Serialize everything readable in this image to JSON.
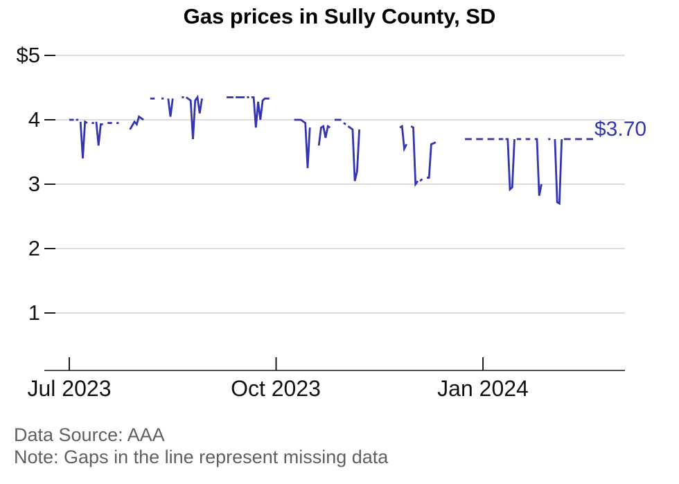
{
  "title": "Gas prices in Sully County, SD",
  "end_label": "$3.70",
  "footer": {
    "source": "Data Source: AAA",
    "note": "Note: Gaps in the line represent missing data"
  },
  "chart_data": {
    "type": "line",
    "title": "Gas prices in Sully County, SD",
    "x_axis": "date",
    "x_tick_labels": [
      "Jul 2023",
      "Oct 2023",
      "Jan 2024"
    ],
    "x_tick_days": [
      0,
      92,
      184
    ],
    "y_tick_labels": [
      "$5",
      "4",
      "3",
      "2",
      "1"
    ],
    "y_tick_values": [
      5,
      4,
      3,
      2,
      1
    ],
    "ylim": [
      0.1,
      5.35
    ],
    "xlim_days": [
      -11,
      247
    ],
    "grid": true,
    "line_color": "#3434ae",
    "annotation": {
      "text": "$3.70",
      "value": 3.7
    },
    "note": "Gaps in the line represent missing data",
    "segments": [
      [
        [
          0,
          4.0
        ],
        [
          2,
          4.0
        ]
      ],
      [
        [
          3,
          4.0
        ],
        [
          4,
          4.0
        ]
      ],
      [
        [
          5,
          3.97
        ],
        [
          6,
          3.4
        ],
        [
          7,
          3.97
        ],
        [
          8,
          3.95
        ]
      ],
      [
        [
          10,
          3.95
        ],
        [
          11,
          3.95
        ]
      ],
      [
        [
          12,
          3.97
        ],
        [
          13,
          3.6
        ],
        [
          14,
          3.93
        ],
        [
          15,
          3.93
        ]
      ],
      [
        [
          17,
          3.95
        ],
        [
          19,
          3.95
        ]
      ],
      [
        [
          21,
          3.95
        ],
        [
          22,
          3.95
        ]
      ],
      [
        [
          27,
          3.85
        ],
        [
          29,
          3.97
        ],
        [
          30,
          3.93
        ],
        [
          31,
          4.05
        ],
        [
          33,
          4.0
        ]
      ],
      [
        [
          36,
          4.33
        ],
        [
          38,
          4.33
        ]
      ],
      [
        [
          41,
          4.33
        ],
        [
          42,
          4.33
        ]
      ],
      [
        [
          44,
          4.33
        ],
        [
          45,
          4.05
        ],
        [
          46,
          4.33
        ]
      ],
      [
        [
          50,
          4.35
        ],
        [
          51,
          4.35
        ]
      ],
      [
        [
          52,
          4.35
        ],
        [
          54,
          4.3
        ],
        [
          55,
          3.7
        ],
        [
          56,
          4.3
        ],
        [
          57,
          4.35
        ],
        [
          58,
          4.1
        ],
        [
          59,
          4.33
        ]
      ],
      [
        [
          70,
          4.35
        ],
        [
          73,
          4.35
        ]
      ],
      [
        [
          74,
          4.35
        ],
        [
          78,
          4.35
        ]
      ],
      [
        [
          79,
          4.35
        ],
        [
          80,
          4.35
        ]
      ],
      [
        [
          81,
          4.35
        ],
        [
          82,
          4.35
        ],
        [
          83,
          3.88
        ],
        [
          84,
          4.28
        ],
        [
          85,
          4.0
        ],
        [
          86,
          4.3
        ],
        [
          87,
          4.33
        ],
        [
          89,
          4.33
        ]
      ],
      [
        [
          100,
          4.0
        ],
        [
          103,
          4.0
        ],
        [
          105,
          3.95
        ],
        [
          106,
          3.25
        ],
        [
          107,
          3.88
        ]
      ],
      [
        [
          111,
          3.6
        ],
        [
          112,
          3.88
        ],
        [
          113,
          3.9
        ],
        [
          114,
          3.72
        ],
        [
          115,
          3.9
        ],
        [
          116,
          3.88
        ]
      ],
      [
        [
          118,
          4.0
        ],
        [
          121,
          4.0
        ]
      ],
      [
        [
          122,
          3.95
        ],
        [
          123,
          3.93
        ]
      ],
      [
        [
          124,
          3.9
        ],
        [
          126,
          3.85
        ],
        [
          127,
          3.05
        ],
        [
          128,
          3.2
        ],
        [
          129,
          3.85
        ]
      ],
      [
        [
          147,
          3.88
        ],
        [
          148,
          3.9
        ],
        [
          149,
          3.55
        ],
        [
          150,
          3.62
        ]
      ],
      [
        [
          152,
          3.9
        ],
        [
          153,
          3.88
        ],
        [
          154,
          3.0
        ],
        [
          155,
          3.05
        ]
      ],
      [
        [
          156,
          3.05
        ],
        [
          157,
          3.08
        ]
      ],
      [
        [
          159,
          3.1
        ],
        [
          160,
          3.1
        ],
        [
          161,
          3.62
        ],
        [
          163,
          3.65
        ]
      ],
      [
        [
          176,
          3.7
        ],
        [
          179,
          3.7
        ]
      ],
      [
        [
          181,
          3.7
        ],
        [
          184,
          3.7
        ]
      ],
      [
        [
          186,
          3.7
        ],
        [
          189,
          3.7
        ]
      ],
      [
        [
          191,
          3.7
        ],
        [
          193,
          3.7
        ]
      ],
      [
        [
          194,
          3.7
        ],
        [
          195,
          3.7
        ],
        [
          196,
          2.92
        ],
        [
          197,
          2.95
        ],
        [
          198,
          3.7
        ]
      ],
      [
        [
          199,
          3.7
        ],
        [
          201,
          3.7
        ]
      ],
      [
        [
          203,
          3.7
        ],
        [
          205,
          3.7
        ]
      ],
      [
        [
          207,
          3.7
        ],
        [
          208,
          3.7
        ],
        [
          209,
          2.82
        ],
        [
          210,
          3.0
        ]
      ],
      [
        [
          213,
          3.7
        ],
        [
          214,
          3.7
        ]
      ],
      [
        [
          216,
          3.7
        ],
        [
          217,
          2.72
        ],
        [
          218,
          2.7
        ],
        [
          219,
          3.7
        ]
      ],
      [
        [
          220,
          3.7
        ],
        [
          223,
          3.7
        ]
      ],
      [
        [
          225,
          3.7
        ],
        [
          228,
          3.7
        ]
      ],
      [
        [
          230,
          3.7
        ],
        [
          233,
          3.7
        ]
      ]
    ]
  }
}
